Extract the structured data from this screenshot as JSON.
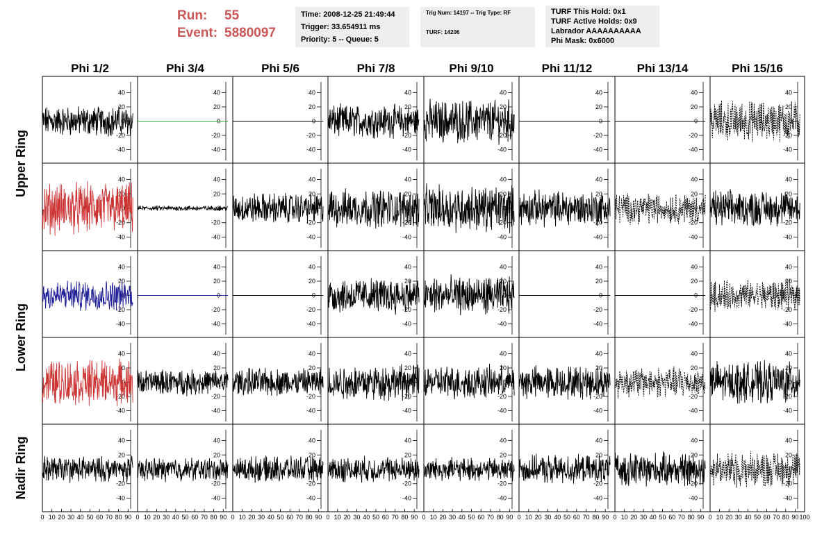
{
  "header": {
    "run_label": "Run:",
    "run_value": "55",
    "event_label": "Event:",
    "event_value": "5880097",
    "time_line": "Time: 2008-12-25 21:49:44",
    "trigger_line": "Trigger: 33.654911 ms",
    "priority_line": "Priority: 5 -- Queue: 5",
    "trig_line": "Trig Num: 14197 -- Trig Type: RF",
    "turf_line": "TURF: 14206",
    "turf_this_hold": "TURF This Hold: 0x1",
    "turf_active_holds": "TURF Active Holds: 0x9",
    "labrador": "Labrador AAAAAAAAAA",
    "phi_mask": "Phi Mask: 0x6000"
  },
  "chart_data": {
    "type": "line",
    "columns": [
      "Phi 1/2",
      "Phi 3/4",
      "Phi 5/6",
      "Phi 7/8",
      "Phi 9/10",
      "Phi 11/12",
      "Phi 13/14",
      "Phi 15/16"
    ],
    "ring_labels": [
      {
        "name": "Upper Ring",
        "rows": [
          0,
          1
        ]
      },
      {
        "name": "Lower Ring",
        "rows": [
          2,
          3
        ]
      },
      {
        "name": "Nadir Ring",
        "rows": [
          4
        ]
      }
    ],
    "xlim": [
      0,
      100
    ],
    "ylim": [
      -55,
      55
    ],
    "y_ticks": [
      -40,
      -20,
      0,
      20,
      40
    ],
    "x_ticks": [
      0,
      10,
      20,
      30,
      40,
      50,
      60,
      70,
      80,
      90,
      100
    ],
    "grid": false,
    "colors": {
      "default": "#000000",
      "red": "#cc3333",
      "blue": "#222299",
      "green": "#33aa33"
    },
    "panels": [
      [
        {
          "amp": 12,
          "color": "default",
          "dash": false
        },
        {
          "amp": 0,
          "color": "green",
          "dash": false
        },
        {
          "amp": 0,
          "color": "default",
          "dash": false
        },
        {
          "amp": 13,
          "color": "default",
          "dash": false
        },
        {
          "amp": 17,
          "color": "default",
          "dash": false
        },
        {
          "amp": 0,
          "color": "default",
          "dash": false
        },
        {
          "amp": 0,
          "color": "default",
          "dash": false
        },
        {
          "amp": 16,
          "color": "default",
          "dash": true
        }
      ],
      [
        {
          "amp": 20,
          "color": "red",
          "dash": false
        },
        {
          "amp": 2,
          "color": "default",
          "dash": false
        },
        {
          "amp": 12,
          "color": "default",
          "dash": false
        },
        {
          "amp": 15,
          "color": "default",
          "dash": false
        },
        {
          "amp": 18,
          "color": "default",
          "dash": false
        },
        {
          "amp": 14,
          "color": "default",
          "dash": false
        },
        {
          "amp": 12,
          "color": "default",
          "dash": true
        },
        {
          "amp": 14,
          "color": "default",
          "dash": false
        }
      ],
      [
        {
          "amp": 12,
          "color": "blue",
          "dash": false
        },
        {
          "amp": 0,
          "color": "blue",
          "dash": false
        },
        {
          "amp": 0,
          "color": "default",
          "dash": false
        },
        {
          "amp": 14,
          "color": "default",
          "dash": false
        },
        {
          "amp": 15,
          "color": "default",
          "dash": false
        },
        {
          "amp": 0,
          "color": "default",
          "dash": false
        },
        {
          "amp": 0,
          "color": "default",
          "dash": false
        },
        {
          "amp": 12,
          "color": "default",
          "dash": true
        }
      ],
      [
        {
          "amp": 18,
          "color": "red",
          "dash": false
        },
        {
          "amp": 10,
          "color": "default",
          "dash": false
        },
        {
          "amp": 11,
          "color": "default",
          "dash": false
        },
        {
          "amp": 14,
          "color": "default",
          "dash": false
        },
        {
          "amp": 13,
          "color": "default",
          "dash": false
        },
        {
          "amp": 13,
          "color": "default",
          "dash": false
        },
        {
          "amp": 12,
          "color": "default",
          "dash": true
        },
        {
          "amp": 16,
          "color": "default",
          "dash": false
        }
      ],
      [
        {
          "amp": 10,
          "color": "default",
          "dash": false
        },
        {
          "amp": 9,
          "color": "default",
          "dash": false
        },
        {
          "amp": 10,
          "color": "default",
          "dash": false
        },
        {
          "amp": 10,
          "color": "default",
          "dash": false
        },
        {
          "amp": 9,
          "color": "default",
          "dash": false
        },
        {
          "amp": 11,
          "color": "default",
          "dash": false
        },
        {
          "amp": 13,
          "color": "default",
          "dash": false
        },
        {
          "amp": 14,
          "color": "default",
          "dash": true
        }
      ]
    ]
  }
}
